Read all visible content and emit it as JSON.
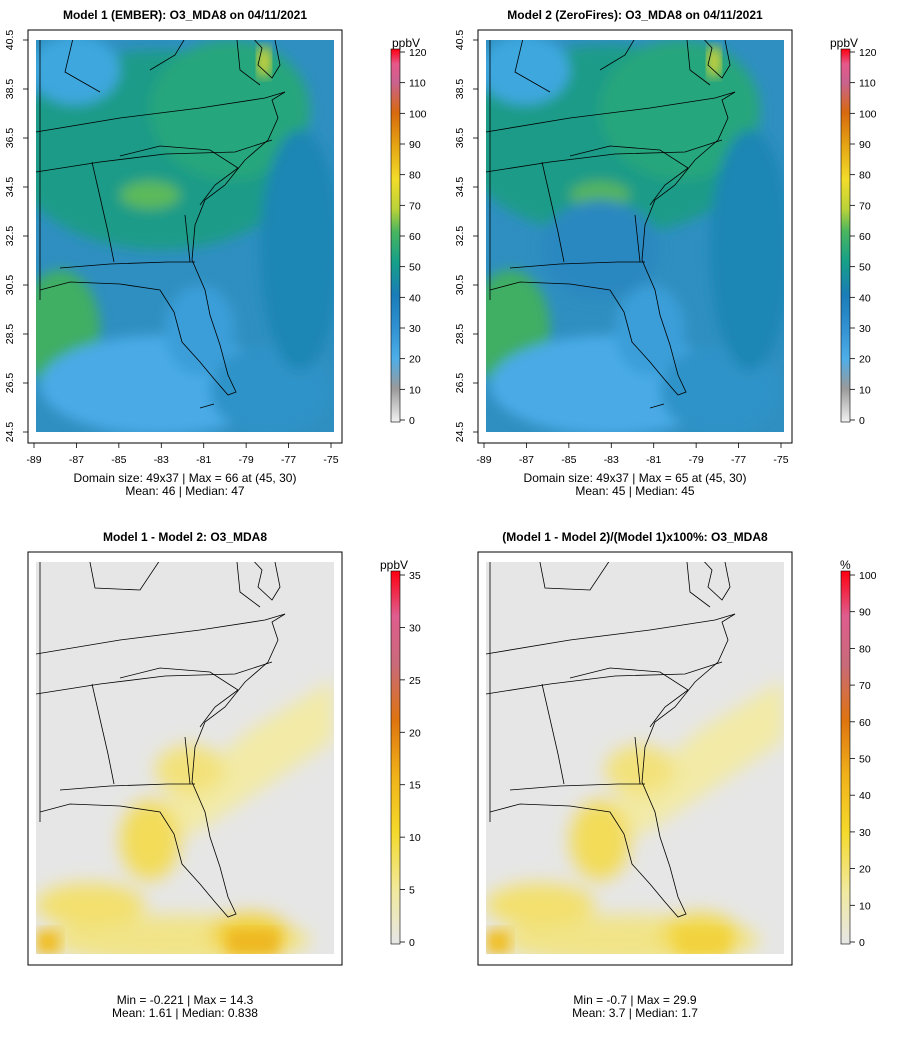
{
  "chart_data": [
    {
      "type": "heatmap",
      "title": "Model 1 (EMBER): O3_MDA8 on 04/11/2021",
      "unit": "ppbV",
      "x_ticks": [
        "-89",
        "-87",
        "-85",
        "-83",
        "-81",
        "-79",
        "-77",
        "-75"
      ],
      "y_ticks": [
        "24.5",
        "26.5",
        "28.5",
        "30.5",
        "32.5",
        "34.5",
        "36.5",
        "38.5",
        "40.5"
      ],
      "xlim": [
        -89,
        -75
      ],
      "ylim": [
        24.5,
        40.5
      ],
      "colorbar_range": [
        0,
        120
      ],
      "colorbar_ticks": [
        "0",
        "10",
        "20",
        "30",
        "40",
        "50",
        "60",
        "70",
        "80",
        "90",
        "100",
        "110",
        "120"
      ],
      "domain": "Domain size: 49x37 | Max = 66 at (45, 30)",
      "stats": "Mean: 46 |  Median: 47",
      "max": 66,
      "mean": 46,
      "median": 47
    },
    {
      "type": "heatmap",
      "title": "Model 2 (ZeroFires): O3_MDA8 on 04/11/2021",
      "unit": "ppbV",
      "x_ticks": [
        "-89",
        "-87",
        "-85",
        "-83",
        "-81",
        "-79",
        "-77",
        "-75"
      ],
      "y_ticks": [
        "24.5",
        "26.5",
        "28.5",
        "30.5",
        "32.5",
        "34.5",
        "36.5",
        "38.5",
        "40.5"
      ],
      "xlim": [
        -89,
        -75
      ],
      "ylim": [
        24.5,
        40.5
      ],
      "colorbar_range": [
        0,
        120
      ],
      "colorbar_ticks": [
        "0",
        "10",
        "20",
        "30",
        "40",
        "50",
        "60",
        "70",
        "80",
        "90",
        "100",
        "110",
        "120"
      ],
      "domain": "Domain size: 49x37 | Max = 65 at (45, 30)",
      "stats": "Mean: 45 |  Median: 45",
      "max": 65,
      "mean": 45,
      "median": 45
    },
    {
      "type": "heatmap",
      "title": "Model 1 - Model 2: O3_MDA8",
      "unit": "ppbV",
      "colorbar_range": [
        0,
        35
      ],
      "colorbar_ticks": [
        "0",
        "5",
        "10",
        "15",
        "20",
        "25",
        "30",
        "35"
      ],
      "domain": "Min = -0.221 | Max = 14.3",
      "stats": "Mean: 1.61 |  Median: 0.838",
      "min": -0.221,
      "max": 14.3,
      "mean": 1.61,
      "median": 0.838
    },
    {
      "type": "heatmap",
      "title": "(Model 1 - Model 2)/(Model 1)x100%: O3_MDA8",
      "unit": "%",
      "colorbar_range": [
        0,
        100
      ],
      "colorbar_ticks": [
        "0",
        "10",
        "20",
        "30",
        "40",
        "50",
        "60",
        "70",
        "80",
        "90",
        "100"
      ],
      "domain": "Min = -0.7 | Max = 29.9",
      "stats": "Mean: 3.7 |  Median: 1.7",
      "min": -0.7,
      "max": 29.9,
      "mean": 3.7,
      "median": 1.7
    }
  ]
}
